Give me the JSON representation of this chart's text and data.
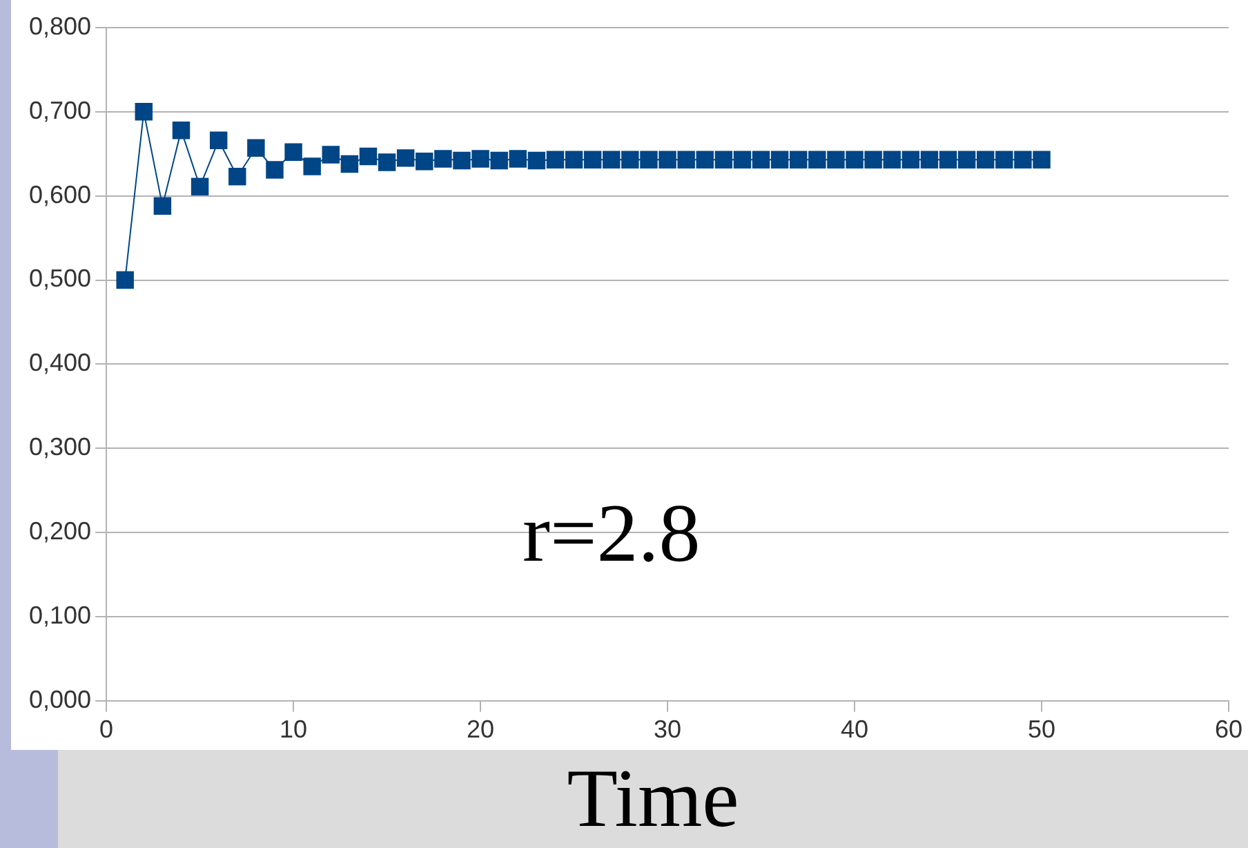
{
  "chart_data": {
    "type": "line",
    "xlabel": "Time",
    "annotations": [
      "r=2.8"
    ],
    "x": [
      1,
      2,
      3,
      4,
      5,
      6,
      7,
      8,
      9,
      10,
      11,
      12,
      13,
      14,
      15,
      16,
      17,
      18,
      19,
      20,
      21,
      22,
      23,
      24,
      25,
      26,
      27,
      28,
      29,
      30,
      31,
      32,
      33,
      34,
      35,
      36,
      37,
      38,
      39,
      40,
      41,
      42,
      43,
      44,
      45,
      46,
      47,
      48,
      49,
      50
    ],
    "series": [
      {
        "color": "#004586",
        "values": [
          0.5,
          0.7,
          0.588,
          0.678,
          0.611,
          0.666,
          0.623,
          0.657,
          0.631,
          0.652,
          0.635,
          0.649,
          0.638,
          0.647,
          0.64,
          0.645,
          0.641,
          0.644,
          0.642,
          0.644,
          0.642,
          0.644,
          0.642,
          0.643,
          0.643,
          0.643,
          0.643,
          0.643,
          0.643,
          0.643,
          0.643,
          0.643,
          0.643,
          0.643,
          0.643,
          0.643,
          0.643,
          0.643,
          0.643,
          0.643,
          0.643,
          0.643,
          0.643,
          0.643,
          0.643,
          0.643,
          0.643,
          0.643,
          0.643,
          0.643
        ]
      }
    ],
    "xlim": [
      0,
      60
    ],
    "xticks": [
      0,
      10,
      20,
      30,
      40,
      50,
      60
    ],
    "ylim": [
      0,
      0.8
    ],
    "yticks": [
      {
        "value": 0,
        "label": "0,000"
      },
      {
        "value": 0.1,
        "label": "0,100"
      },
      {
        "value": 0.2,
        "label": "0,200"
      },
      {
        "value": 0.3,
        "label": "0,300"
      },
      {
        "value": 0.4,
        "label": "0,400"
      },
      {
        "value": 0.5,
        "label": "0,500"
      },
      {
        "value": 0.6,
        "label": "0,600"
      },
      {
        "value": 0.7,
        "label": "0,700"
      },
      {
        "value": 0.8,
        "label": "0,800"
      }
    ],
    "grid": "y",
    "legend": false,
    "marker": "square",
    "line_style": "solid"
  }
}
